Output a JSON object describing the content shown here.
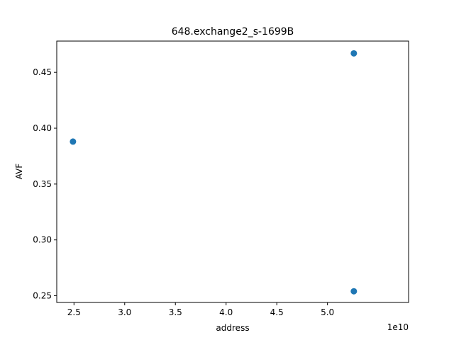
{
  "chart_data": {
    "type": "scatter",
    "title": "648.exchange2_s-1699B",
    "xlabel": "address",
    "ylabel": "AVF",
    "x_offset_label": "1e10",
    "xlim": [
      2.33,
      5.8
    ],
    "ylim": [
      0.244,
      0.478
    ],
    "x_ticks": [
      2.5,
      3.0,
      3.5,
      4.0,
      4.5,
      5.0
    ],
    "x_tick_labels": [
      "2.5",
      "3.0",
      "3.5",
      "4.0",
      "4.5",
      "5.0"
    ],
    "y_ticks": [
      0.25,
      0.3,
      0.35,
      0.4,
      0.45
    ],
    "y_tick_labels": [
      "0.25",
      "0.30",
      "0.35",
      "0.40",
      "0.45"
    ],
    "points": [
      {
        "x": 2.49,
        "y": 0.388
      },
      {
        "x": 5.26,
        "y": 0.467
      },
      {
        "x": 5.26,
        "y": 0.254
      }
    ],
    "marker_color": "#1f77b4",
    "grid": false,
    "legend": "none"
  }
}
